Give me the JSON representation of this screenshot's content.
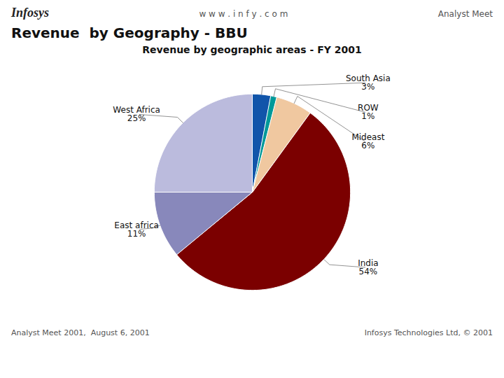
{
  "chart_data": {
    "type": "pie",
    "title": "Revenue  by Geography - BBU",
    "subtitle": "Revenue by geographic areas - FY 2001",
    "categories": [
      "India",
      "East africa",
      "West Africa",
      "South Asia",
      "ROW",
      "Mideast"
    ],
    "values": [
      54,
      11,
      25,
      3,
      1,
      6
    ],
    "value_labels": [
      "54%",
      "11%",
      "25%",
      "3%",
      "1%",
      "6%"
    ],
    "colors": [
      "#7B0000",
      "#8888BB",
      "#BBBBDD",
      "#1155AA",
      "#009999",
      "#F0C8A0"
    ],
    "annotations": [
      "Infosys",
      "w w w . i n f y . c o m",
      "Analyst Meet",
      "Analyst Meet 2001,  August 6, 2001",
      "Infosys Technologies Ltd, © 2001"
    ]
  }
}
